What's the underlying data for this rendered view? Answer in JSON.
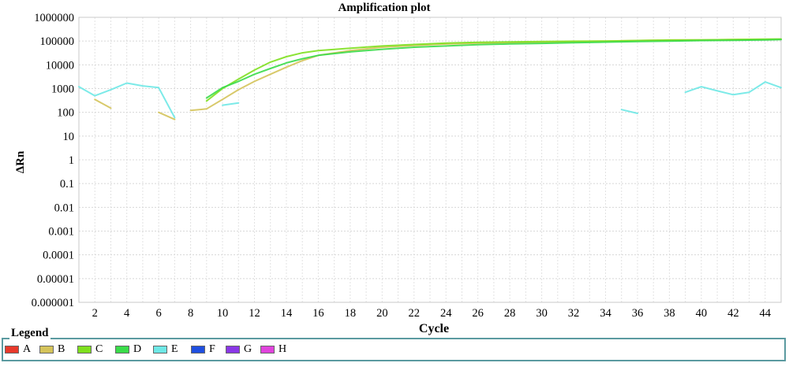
{
  "chart_data": {
    "type": "line",
    "title": "Amplification plot",
    "xlabel": "Cycle",
    "ylabel": "ΔRn",
    "x_range": [
      1,
      45
    ],
    "y_scale": "log",
    "y_range": [
      1e-06,
      1000000
    ],
    "x_ticks": [
      2,
      4,
      6,
      8,
      10,
      12,
      14,
      16,
      18,
      20,
      22,
      24,
      26,
      28,
      30,
      32,
      34,
      36,
      38,
      40,
      42,
      44
    ],
    "y_ticks": [
      "0.000001",
      "0.00001",
      "0.0001",
      "0.001",
      "0.01",
      "0.1",
      "1",
      "10",
      "100",
      "1000",
      "10000",
      "100000",
      "1000000"
    ],
    "grid": true,
    "legend_title": "Legend",
    "legend": [
      {
        "label": "A",
        "color": "#e8392b"
      },
      {
        "label": "B",
        "color": "#d4c35a"
      },
      {
        "label": "C",
        "color": "#7ee01e"
      },
      {
        "label": "D",
        "color": "#3adc4a"
      },
      {
        "label": "E",
        "color": "#6ee8e6"
      },
      {
        "label": "F",
        "color": "#1f4fe0"
      },
      {
        "label": "G",
        "color": "#8a37e6"
      },
      {
        "label": "H",
        "color": "#e044dc"
      }
    ],
    "series": [
      {
        "color": "#d4c35a",
        "segments": [
          [
            [
              2,
              350
            ],
            [
              3,
              150
            ]
          ],
          [
            [
              6,
              100
            ],
            [
              7,
              50
            ]
          ],
          [
            [
              8,
              120
            ],
            [
              9,
              140
            ],
            [
              10,
              350
            ],
            [
              11,
              900
            ],
            [
              12,
              2000
            ],
            [
              13,
              4000
            ],
            [
              14,
              8000
            ],
            [
              15,
              15000
            ],
            [
              16,
              25000
            ],
            [
              18,
              40000
            ],
            [
              20,
              55000
            ],
            [
              22,
              65000
            ],
            [
              24,
              75000
            ],
            [
              26,
              82000
            ],
            [
              28,
              85000
            ],
            [
              30,
              90000
            ],
            [
              32,
              95000
            ],
            [
              34,
              100000
            ],
            [
              36,
              105000
            ],
            [
              38,
              110000
            ],
            [
              40,
              112000
            ],
            [
              42,
              115000
            ],
            [
              44,
              118000
            ],
            [
              45,
              120000
            ]
          ]
        ]
      },
      {
        "color": "#7ee01e",
        "segments": [
          [
            [
              9,
              300
            ],
            [
              10,
              1000
            ],
            [
              11,
              2500
            ],
            [
              12,
              6000
            ],
            [
              13,
              13000
            ],
            [
              14,
              22000
            ],
            [
              15,
              32000
            ],
            [
              16,
              40000
            ],
            [
              18,
              50000
            ],
            [
              20,
              62000
            ],
            [
              22,
              72000
            ],
            [
              24,
              82000
            ],
            [
              26,
              88000
            ],
            [
              28,
              92000
            ],
            [
              30,
              95000
            ],
            [
              32,
              98000
            ],
            [
              34,
              100000
            ],
            [
              36,
              105000
            ],
            [
              38,
              110000
            ],
            [
              40,
              112000
            ],
            [
              42,
              115000
            ],
            [
              44,
              120000
            ],
            [
              45,
              122000
            ]
          ]
        ]
      },
      {
        "color": "#3adc4a",
        "segments": [
          [
            [
              9,
              400
            ],
            [
              10,
              1100
            ],
            [
              11,
              2000
            ],
            [
              12,
              4000
            ],
            [
              13,
              7000
            ],
            [
              14,
              12000
            ],
            [
              15,
              18000
            ],
            [
              16,
              25000
            ],
            [
              18,
              35000
            ],
            [
              20,
              45000
            ],
            [
              22,
              55000
            ],
            [
              24,
              62000
            ],
            [
              26,
              70000
            ],
            [
              28,
              76000
            ],
            [
              30,
              80000
            ],
            [
              32,
              85000
            ],
            [
              34,
              90000
            ],
            [
              36,
              95000
            ],
            [
              38,
              100000
            ],
            [
              40,
              105000
            ],
            [
              42,
              108000
            ],
            [
              44,
              112000
            ],
            [
              45,
              115000
            ]
          ]
        ]
      },
      {
        "color": "#6ee8e6",
        "segments": [
          [
            [
              1,
              1200
            ],
            [
              2,
              500
            ],
            [
              3,
              900
            ],
            [
              4,
              1700
            ],
            [
              5,
              1300
            ],
            [
              6,
              1100
            ],
            [
              7,
              60
            ]
          ],
          [
            [
              10,
              200
            ],
            [
              11,
              250
            ]
          ],
          [
            [
              35,
              130
            ],
            [
              36,
              90
            ]
          ],
          [
            [
              39,
              700
            ],
            [
              40,
              1200
            ],
            [
              41,
              800
            ],
            [
              42,
              550
            ],
            [
              43,
              700
            ],
            [
              44,
              1900
            ],
            [
              45,
              1100
            ]
          ]
        ]
      }
    ]
  }
}
